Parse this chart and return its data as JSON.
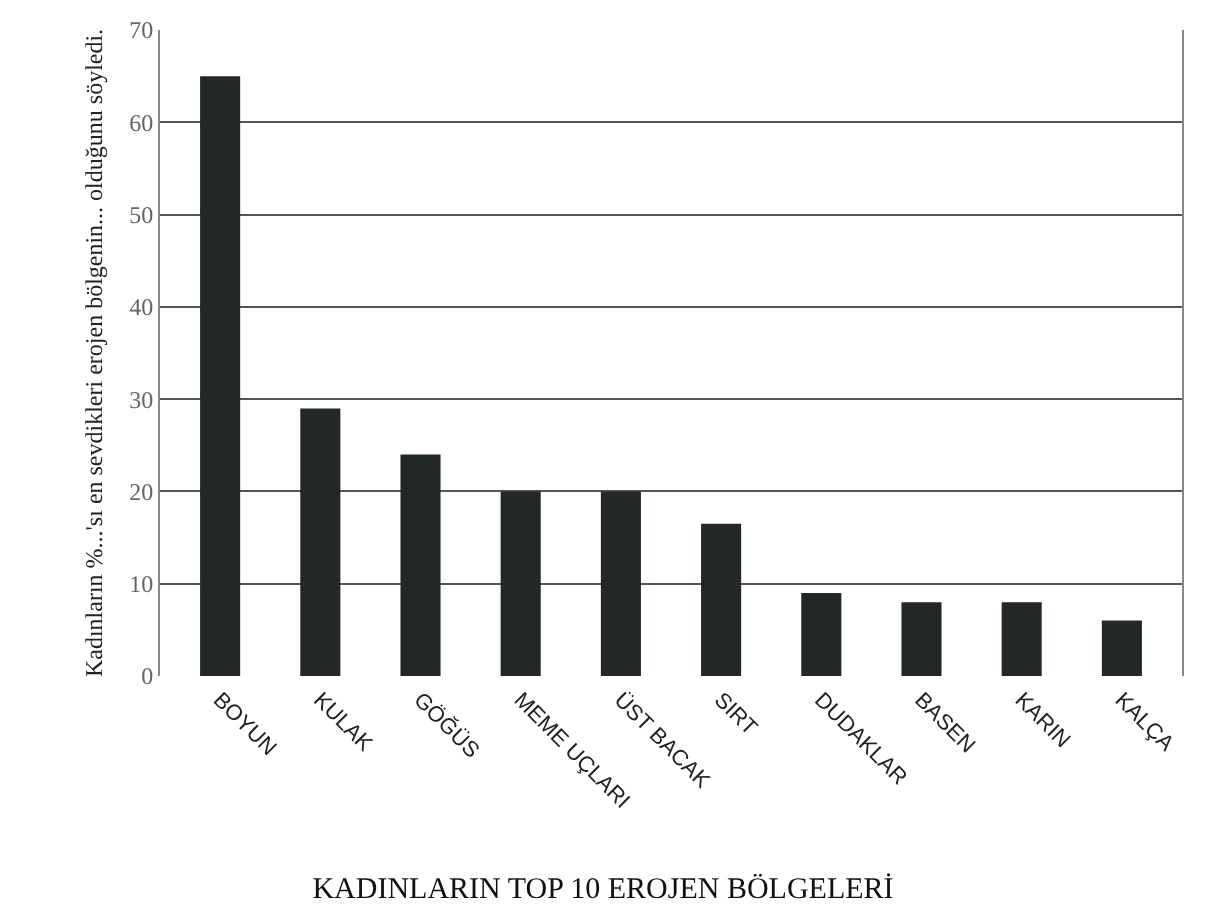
{
  "chart_data": {
    "type": "bar",
    "title": "KADINLARIN TOP 10 EROJEN BÖLGELERİ",
    "ylabel": "Kadınların %...'sı en sevdikleri erojen bölgenin... olduğunu söyledi.",
    "categories": [
      "BOYUN",
      "KULAK",
      "GÖĞÜS",
      "MEME UÇLARI",
      "ÜST BACAK",
      "SIRT",
      "DUDAKLAR",
      "BASEN",
      "KARIN",
      "KALÇA"
    ],
    "values": [
      65,
      29,
      24,
      20,
      20,
      16.5,
      9,
      8,
      8,
      6
    ],
    "color": "#222826",
    "ylim": [
      0,
      70
    ],
    "yticks": [
      0,
      10,
      20,
      30,
      40,
      50,
      60,
      70
    ],
    "grid": "y"
  }
}
